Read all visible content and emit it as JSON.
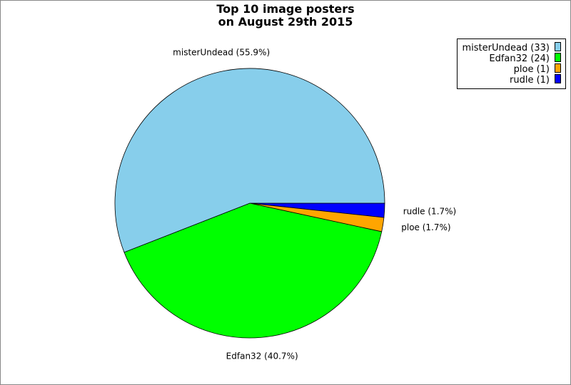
{
  "chart_data": {
    "type": "pie",
    "title": [
      "Top 10 image posters",
      "on August 29th 2015"
    ],
    "slices": [
      {
        "name": "rudle",
        "value": 1,
        "percent": 1.7,
        "label": "rudle (1.7%)",
        "legend": "rudle (1)",
        "color": "#0000ff"
      },
      {
        "name": "ploe",
        "value": 1,
        "percent": 1.7,
        "label": "ploe (1.7%)",
        "legend": "ploe (1)",
        "color": "#ffa500"
      },
      {
        "name": "Edfan32",
        "value": 24,
        "percent": 40.7,
        "label": "Edfan32 (40.7%)",
        "legend": "Edfan32 (24)",
        "color": "#00ff00"
      },
      {
        "name": "misterUndead",
        "value": 33,
        "percent": 55.9,
        "label": "misterUndead (55.9%)",
        "legend": "misterUndead (33)",
        "color": "#87ceeb"
      }
    ],
    "legend_order": [
      "misterUndead",
      "Edfan32",
      "ploe",
      "rudle"
    ],
    "legend_position": "top-right"
  }
}
